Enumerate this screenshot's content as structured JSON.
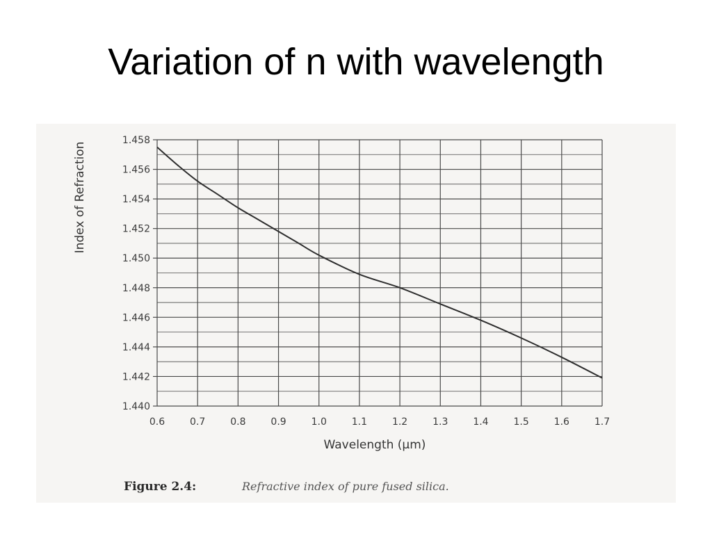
{
  "slide": {
    "title": "Variation of n with wavelength"
  },
  "figure": {
    "caption_label": "Figure 2.4:",
    "caption_text": "Refractive index of pure fused silica."
  },
  "colors": {
    "background": "#ffffff",
    "scan_paper": "#f6f5f3",
    "grid": "#4a4a4a",
    "curve": "#2e2e2e"
  },
  "chart_data": {
    "type": "line",
    "title": "",
    "xlabel": "Wavelength (µm)",
    "ylabel": "Index of Refraction",
    "xlim": [
      0.6,
      1.7
    ],
    "ylim": [
      1.44,
      1.458
    ],
    "x_ticks": [
      "0.6",
      "0.7",
      "0.8",
      "0.9",
      "1.0",
      "1.1",
      "1.2",
      "1.3",
      "1.4",
      "1.5",
      "1.6",
      "1.7"
    ],
    "y_ticks": [
      "1.440",
      "1.442",
      "1.444",
      "1.446",
      "1.448",
      "1.450",
      "1.452",
      "1.454",
      "1.456",
      "1.458"
    ],
    "grid": true,
    "series": [
      {
        "x": [
          0.6,
          0.65,
          0.7,
          0.75,
          0.8,
          0.85,
          0.9,
          0.95,
          1.0,
          1.1,
          1.2,
          1.3,
          1.4,
          1.5,
          1.6,
          1.7
        ],
        "y": [
          1.4575,
          1.4563,
          1.4552,
          1.4543,
          1.4534,
          1.4526,
          1.4518,
          1.451,
          1.4502,
          1.4489,
          1.448,
          1.4469,
          1.4458,
          1.4446,
          1.4433,
          1.4419
        ]
      }
    ]
  }
}
